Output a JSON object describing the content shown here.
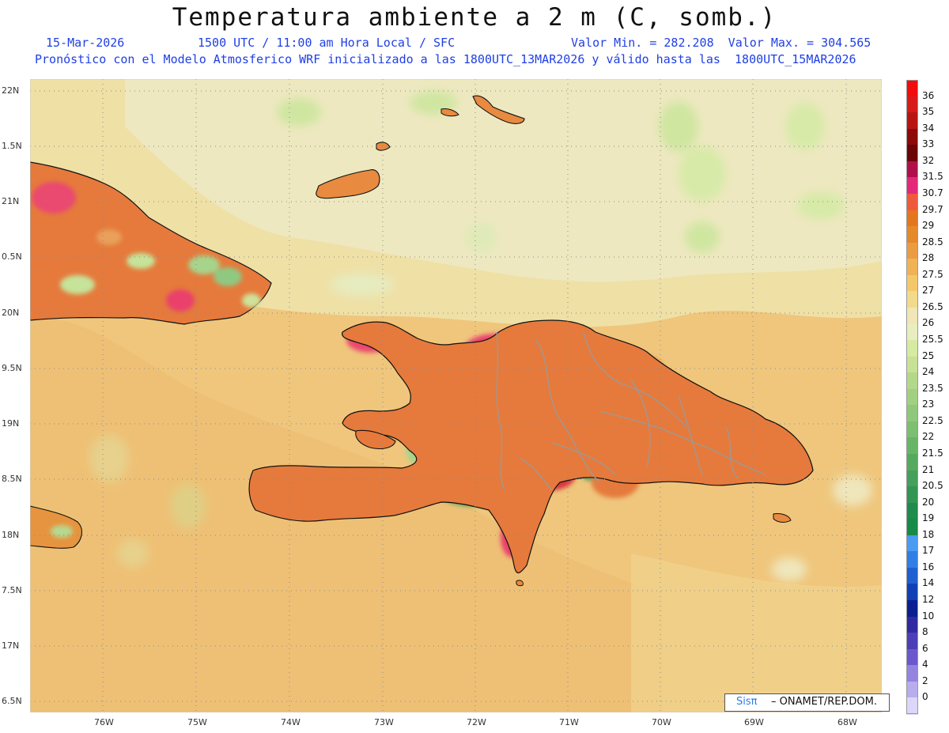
{
  "header": {
    "title": "Temperatura ambiente a 2 m (C, somb.)",
    "date": "15-Mar-2026",
    "time_line": "1500 UTC / 11:00 am Hora Local / SFC",
    "min_max": "Valor Min. = 282.208  Valor Max. = 304.565",
    "model_line": "Pronóstico con el Modelo Atmosferico WRF inicializado a las 1800UTC_13MAR2026 y válido hasta las  1800UTC_15MAR2026"
  },
  "map": {
    "lat_labels": [
      "22N",
      "1.5N",
      "21N",
      "0.5N",
      "20N",
      "9.5N",
      "19N",
      "8.5N",
      "18N",
      "7.5N",
      "17N",
      "6.5N"
    ],
    "lon_labels": [
      "76W",
      "75W",
      "74W",
      "73W",
      "72W",
      "71W",
      "70W",
      "69W",
      "68W"
    ],
    "field": "2 m temperature (°C)",
    "colors": {
      "sea_warm": "#efc16f",
      "sea_mild": "#f1dc9c",
      "sea_cool": "#efe7bf",
      "land_hot": "#e27a3d",
      "land_very_hot": "#ea3f6c",
      "land_mid": "#cfe29a",
      "land_cool": "#8fc981",
      "land_cold": "#3aa06b",
      "land_coldest": "#2d64d8"
    }
  },
  "colorbar": {
    "labels": [
      "36",
      "35",
      "34",
      "33",
      "32",
      "31.5",
      "30.7",
      "29.7",
      "29",
      "28.5",
      "28",
      "27.5",
      "27",
      "26.5",
      "26",
      "25.5",
      "25",
      "24",
      "23.5",
      "23",
      "22.5",
      "22",
      "21.5",
      "21",
      "20.5",
      "20",
      "19",
      "18",
      "17",
      "16",
      "14",
      "12",
      "10",
      "8",
      "6",
      "4",
      "2",
      "0"
    ],
    "colors": [
      "#f20d0d",
      "#d91a1a",
      "#b81414",
      "#8c0a0a",
      "#6b0606",
      "#b0104a",
      "#e4287a",
      "#ef5a3c",
      "#e4761f",
      "#e5892b",
      "#eb9c42",
      "#f0b254",
      "#f4c86a",
      "#f1da8c",
      "#f0e6b6",
      "#e8eec0",
      "#d7eaa1",
      "#c7e197",
      "#b3d889",
      "#a2d081",
      "#8fc87a",
      "#7dbf71",
      "#68b568",
      "#55aa60",
      "#45a05b",
      "#329553",
      "#1f8b4c",
      "#168a47",
      "#4a9bf2",
      "#2f7fe6",
      "#1e60d2",
      "#1240b4",
      "#0a2090",
      "#2f2aa0",
      "#4d3eb8",
      "#6c58cc",
      "#9484e0",
      "#b8acee",
      "#dcd6f8"
    ]
  },
  "credit": {
    "logo_text": "Sisπ",
    "text": "– ONAMET/REP.DOM."
  }
}
